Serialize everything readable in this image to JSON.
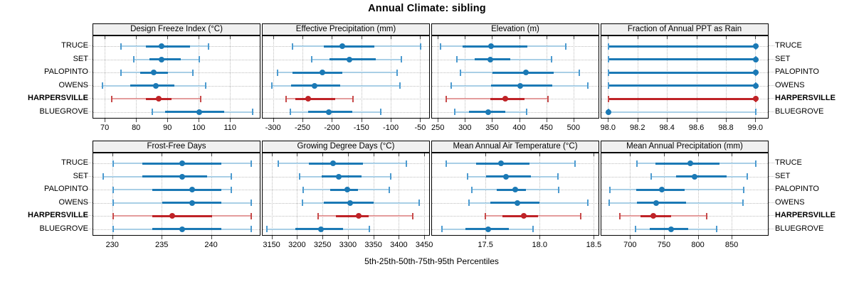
{
  "title": "Annual Climate: sibling",
  "caption": "5th-25th-50th-75th-95th Percentiles",
  "sites": [
    "TRUCE",
    "SET",
    "PALOPINTO",
    "OWENS",
    "HARPERSVILLE",
    "BLUEGROVE"
  ],
  "highlight_site": "HARPERSVILLE",
  "percentile_labels": [
    "5th",
    "25th",
    "50th",
    "75th",
    "95th"
  ],
  "colors": {
    "blue_dark": "#1b79b5",
    "blue_light": "#a9cfe6",
    "blue_cap": "#4d9bd0",
    "red_dark": "#bf2327",
    "red_light": "#e49c9c",
    "red_cap": "#c74a4a",
    "strip_bg": "#f0f0f0",
    "grid": "#bdbdbd"
  },
  "chart_data": [
    {
      "type": "interval-dotplot",
      "row": 1,
      "col": 1,
      "title": "Design Freeze Index (°C)",
      "xticks": [
        70,
        80,
        90,
        100,
        110
      ],
      "xtick_labels": [
        "70",
        "80",
        "90",
        "100",
        "110"
      ],
      "xlim": [
        66.1,
        119.7
      ],
      "series": [
        {
          "site": "TRUCE",
          "values": [
            75,
            83,
            88,
            97,
            103
          ]
        },
        {
          "site": "SET",
          "values": [
            79,
            84,
            88,
            94,
            100
          ]
        },
        {
          "site": "PALOPINTO",
          "values": [
            75,
            81,
            85.5,
            90,
            98
          ]
        },
        {
          "site": "OWENS",
          "values": [
            69,
            78,
            86,
            92,
            102
          ]
        },
        {
          "site": "HARPERSVILLE",
          "values": [
            72,
            83,
            87,
            91,
            100.5
          ]
        },
        {
          "site": "BLUEGROVE",
          "values": [
            85,
            89,
            100,
            108,
            117
          ]
        }
      ]
    },
    {
      "type": "interval-dotplot",
      "row": 1,
      "col": 2,
      "title": "Effective Precipitation (mm)",
      "xticks": [
        -300,
        -250,
        -200,
        -150,
        -100,
        -50
      ],
      "xtick_labels": [
        "-300",
        "-250",
        "-200",
        "-150",
        "-100",
        "-50"
      ],
      "xlim": [
        -318.9,
        -33.6
      ],
      "series": [
        {
          "site": "TRUCE",
          "values": [
            -268,
            -215,
            -183,
            -129,
            -51
          ]
        },
        {
          "site": "SET",
          "values": [
            -236,
            -205,
            -171,
            -127,
            -83
          ]
        },
        {
          "site": "PALOPINTO",
          "values": [
            -293,
            -268,
            -217,
            -183,
            -90
          ]
        },
        {
          "site": "OWENS",
          "values": [
            -303,
            -270,
            -231,
            -187,
            -85
          ]
        },
        {
          "site": "HARPERSVILLE",
          "values": [
            -279,
            -263,
            -241,
            -195,
            -165
          ]
        },
        {
          "site": "BLUEGROVE",
          "values": [
            -272,
            -241,
            -206,
            -167,
            -118
          ]
        }
      ]
    },
    {
      "type": "interval-dotplot",
      "row": 1,
      "col": 3,
      "title": "Elevation (m)",
      "xticks": [
        250,
        300,
        350,
        400,
        450,
        500
      ],
      "xtick_labels": [
        "250",
        "300",
        "350",
        "400",
        "450",
        "500"
      ],
      "xlim": [
        238,
        547.4
      ],
      "series": [
        {
          "site": "TRUCE",
          "values": [
            254,
            295,
            347,
            414,
            485
          ]
        },
        {
          "site": "SET",
          "values": [
            284,
            317,
            345,
            382,
            458
          ]
        },
        {
          "site": "PALOPINTO",
          "values": [
            290,
            349,
            411,
            462,
            510
          ]
        },
        {
          "site": "OWENS",
          "values": [
            274,
            347,
            400,
            460,
            525
          ]
        },
        {
          "site": "HARPERSVILLE",
          "values": [
            264,
            345,
            373,
            409,
            452
          ]
        },
        {
          "site": "BLUEGROVE",
          "values": [
            280,
            306,
            341,
            373,
            412
          ]
        }
      ]
    },
    {
      "type": "interval-dotplot",
      "row": 1,
      "col": 4,
      "title": "Fraction of Annual PPT as Rain",
      "xticks": [
        98.0,
        98.2,
        98.4,
        98.6,
        98.8,
        99.0
      ],
      "xtick_labels": [
        "98.0",
        "98.2",
        "98.4",
        "98.6",
        "98.8",
        "99.0"
      ],
      "xlim": [
        97.95,
        99.09
      ],
      "series": [
        {
          "site": "TRUCE",
          "values": [
            98.0,
            98.0,
            99.0,
            99.0,
            99.0
          ]
        },
        {
          "site": "SET",
          "values": [
            98.0,
            98.0,
            99.0,
            99.0,
            99.0
          ]
        },
        {
          "site": "PALOPINTO",
          "values": [
            98.0,
            98.0,
            99.0,
            99.0,
            99.0
          ]
        },
        {
          "site": "OWENS",
          "values": [
            98.0,
            98.0,
            99.0,
            99.0,
            99.0
          ]
        },
        {
          "site": "HARPERSVILLE",
          "values": [
            98.0,
            98.0,
            99.0,
            99.0,
            99.0
          ]
        },
        {
          "site": "BLUEGROVE",
          "values": [
            98.0,
            98.0,
            98.0,
            98.0,
            99.0
          ]
        }
      ]
    },
    {
      "type": "interval-dotplot",
      "row": 2,
      "col": 1,
      "title": "Frost-Free Days",
      "xticks": [
        230,
        235,
        240
      ],
      "xtick_labels": [
        "230",
        "235",
        "240"
      ],
      "xlim": [
        228,
        245
      ],
      "series": [
        {
          "site": "TRUCE",
          "values": [
            230,
            233,
            237,
            241,
            244
          ]
        },
        {
          "site": "SET",
          "values": [
            229,
            233,
            237,
            239.5,
            242
          ]
        },
        {
          "site": "PALOPINTO",
          "values": [
            230,
            234,
            238,
            241,
            242
          ]
        },
        {
          "site": "OWENS",
          "values": [
            230,
            235,
            238,
            241,
            244
          ]
        },
        {
          "site": "HARPERSVILLE",
          "values": [
            230,
            234,
            236,
            240,
            244
          ]
        },
        {
          "site": "BLUEGROVE",
          "values": [
            230,
            234,
            237,
            241,
            244
          ]
        }
      ]
    },
    {
      "type": "interval-dotplot",
      "row": 2,
      "col": 2,
      "title": "Growing Degree Days (°C)",
      "xticks": [
        3150,
        3200,
        3250,
        3300,
        3350,
        3400,
        3450
      ],
      "xtick_labels": [
        "3150",
        "3200",
        "3250",
        "3300",
        "3350",
        "3400",
        "3450"
      ],
      "xlim": [
        3131,
        3461
      ],
      "series": [
        {
          "site": "TRUCE",
          "values": [
            3162,
            3222,
            3270,
            3328,
            3414
          ]
        },
        {
          "site": "SET",
          "values": [
            3204,
            3247,
            3281,
            3326,
            3382
          ]
        },
        {
          "site": "PALOPINTO",
          "values": [
            3211,
            3264,
            3297,
            3319,
            3380
          ]
        },
        {
          "site": "OWENS",
          "values": [
            3209,
            3251,
            3303,
            3349,
            3439
          ]
        },
        {
          "site": "HARPERSVILLE",
          "values": [
            3240,
            3275,
            3320,
            3340,
            3426
          ]
        },
        {
          "site": "BLUEGROVE",
          "values": [
            3140,
            3196,
            3245,
            3289,
            3341
          ]
        }
      ]
    },
    {
      "type": "interval-dotplot",
      "row": 2,
      "col": 3,
      "title": "Mean Annual Air Temperature (°C)",
      "xticks": [
        17.5,
        18.0,
        18.5
      ],
      "xtick_labels": [
        "17.5",
        "18.0",
        "18.5"
      ],
      "xlim": [
        17.0,
        18.55
      ],
      "series": [
        {
          "site": "TRUCE",
          "values": [
            17.13,
            17.41,
            17.64,
            17.9,
            18.32
          ]
        },
        {
          "site": "SET",
          "values": [
            17.33,
            17.5,
            17.68,
            17.91,
            18.16
          ]
        },
        {
          "site": "PALOPINTO",
          "values": [
            17.37,
            17.6,
            17.77,
            17.87,
            18.17
          ]
        },
        {
          "site": "OWENS",
          "values": [
            17.34,
            17.54,
            17.79,
            17.99,
            18.44
          ]
        },
        {
          "site": "HARPERSVILLE",
          "values": [
            17.49,
            17.65,
            17.85,
            17.98,
            18.37
          ]
        },
        {
          "site": "BLUEGROVE",
          "values": [
            17.09,
            17.31,
            17.52,
            17.71,
            17.93
          ]
        }
      ]
    },
    {
      "type": "interval-dotplot",
      "row": 2,
      "col": 4,
      "title": "Mean Annual Precipitation (mm)",
      "xticks": [
        700,
        750,
        800,
        850
      ],
      "xtick_labels": [
        "700",
        "750",
        "800",
        "850"
      ],
      "xlim": [
        656.6,
        904.5
      ],
      "series": [
        {
          "site": "TRUCE",
          "values": [
            709,
            736,
            788,
            831,
            885
          ]
        },
        {
          "site": "SET",
          "values": [
            730,
            767,
            794,
            841,
            872
          ]
        },
        {
          "site": "PALOPINTO",
          "values": [
            669,
            708,
            746,
            779,
            867
          ]
        },
        {
          "site": "OWENS",
          "values": [
            668,
            709,
            737,
            782,
            866
          ]
        },
        {
          "site": "HARPERSVILLE",
          "values": [
            684,
            714,
            733,
            760,
            812
          ]
        },
        {
          "site": "BLUEGROVE",
          "values": [
            707,
            728,
            760,
            785,
            827
          ]
        }
      ]
    }
  ]
}
